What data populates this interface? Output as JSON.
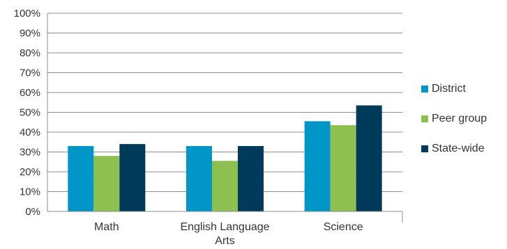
{
  "chart_data": {
    "type": "bar",
    "categories": [
      "Math",
      "English Language Arts",
      "Science"
    ],
    "series": [
      {
        "name": "District",
        "color": "#0096c8",
        "values": [
          33,
          33,
          45.5
        ]
      },
      {
        "name": "Peer group",
        "color": "#8dc04f",
        "values": [
          28,
          25.5,
          43.5
        ]
      },
      {
        "name": "State-wide",
        "color": "#003a5a",
        "values": [
          34,
          33,
          53.5
        ]
      }
    ],
    "ylim": [
      0,
      100
    ],
    "yticks": [
      "0%",
      "10%",
      "20%",
      "30%",
      "40%",
      "50%",
      "60%",
      "70%",
      "80%",
      "90%",
      "100%"
    ],
    "grid": true,
    "legend": "right",
    "title": "",
    "xlabel": "",
    "ylabel": ""
  }
}
